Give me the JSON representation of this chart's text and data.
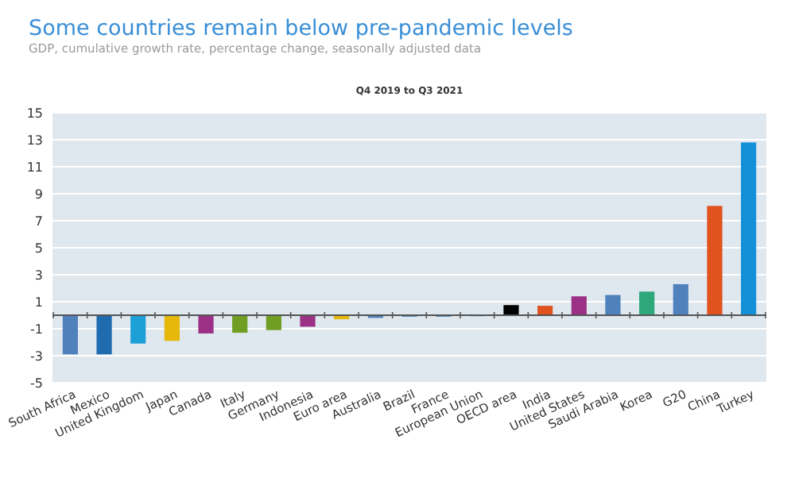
{
  "chart_data": {
    "type": "bar",
    "title": "Some countries remain below pre-pandemic levels",
    "subtitle": "GDP, cumulative growth rate, percentage change, seasonally adjusted data",
    "annotations": [
      "Q4 2019 to Q3 2021"
    ],
    "categories": [
      "South Africa",
      "Mexico",
      "United Kingdom",
      "Japan",
      "Canada",
      "Italy",
      "Germany",
      "Indonesia",
      "Euro area",
      "Australia",
      "Brazil",
      "France",
      "European Union",
      "OECD area",
      "India",
      "United States",
      "Saudi Arabia",
      "Korea",
      "G20",
      "China",
      "Turkey"
    ],
    "values": [
      -2.9,
      -2.9,
      -2.1,
      -1.9,
      -1.35,
      -1.3,
      -1.1,
      -0.85,
      -0.3,
      -0.2,
      -0.1,
      -0.1,
      0,
      0.75,
      0.7,
      1.4,
      1.5,
      1.75,
      2.3,
      8.1,
      12.8
    ],
    "colors": [
      "#4f81bd",
      "#1f6bb0",
      "#1da0d6",
      "#e6b80b",
      "#9b3086",
      "#6f9e22",
      "#6f9e22",
      "#9b3086",
      "#e6b80b",
      "#4f81bd",
      "#1f6bb0",
      "#1f6bb0",
      "#1f6bb0",
      "#000000",
      "#e0531f",
      "#9b3086",
      "#4f81bd",
      "#2ea87a",
      "#4f81bd",
      "#e0531f",
      "#1490d8"
    ],
    "ylim": [
      -5,
      15
    ],
    "yticks": [
      -5,
      -3,
      -1,
      1,
      3,
      5,
      7,
      9,
      11,
      13,
      15
    ],
    "grid": "y"
  }
}
